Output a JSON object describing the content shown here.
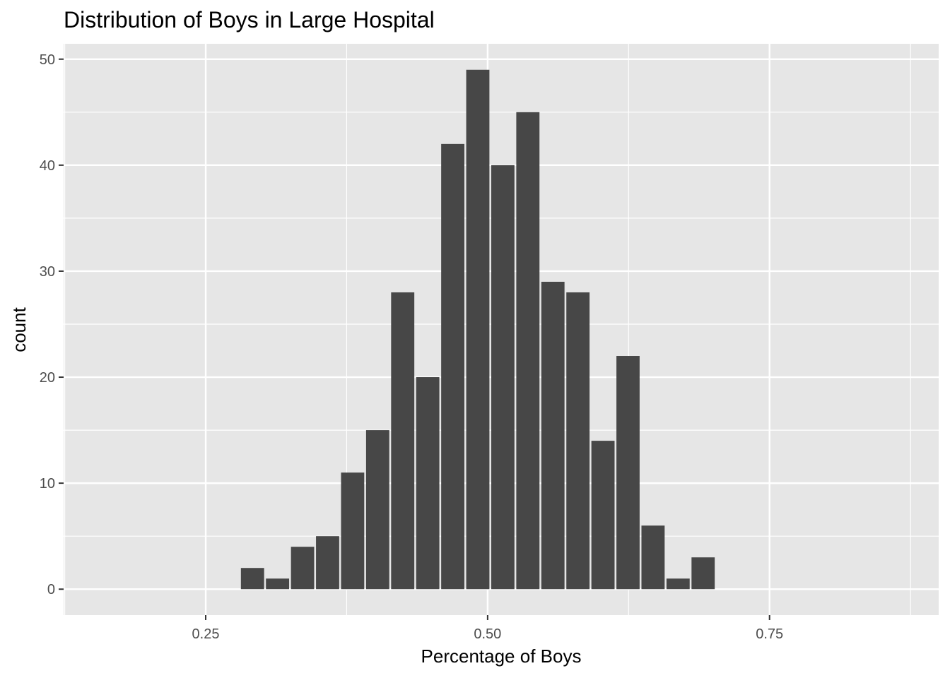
{
  "chart_data": {
    "type": "bar",
    "title": "Distribution of Boys in Large Hospital",
    "xlabel": "Percentage of Boys",
    "ylabel": "count",
    "bin_width": 0.0222,
    "x": [
      0.2915,
      0.3137,
      0.3359,
      0.3581,
      0.3803,
      0.4025,
      0.4247,
      0.4469,
      0.4691,
      0.4913,
      0.5135,
      0.5357,
      0.5579,
      0.5801,
      0.6023,
      0.6245,
      0.6467,
      0.6689,
      0.6911
    ],
    "values": [
      2,
      1,
      4,
      5,
      11,
      15,
      28,
      20,
      42,
      49,
      40,
      45,
      29,
      28,
      14,
      22,
      6,
      1,
      3
    ],
    "xlim": [
      0.124,
      0.9
    ],
    "ylim": [
      -2.45,
      51.45
    ],
    "x_ticks": [
      0.25,
      0.5,
      0.75
    ],
    "x_tick_labels": [
      "0.25",
      "0.50",
      "0.75"
    ],
    "y_ticks": [
      0,
      10,
      20,
      30,
      40,
      50
    ],
    "y_tick_labels": [
      "0",
      "10",
      "20",
      "30",
      "40",
      "50"
    ],
    "grid": true,
    "colors": {
      "bar": "#474747",
      "panel": "#e6e6e6",
      "grid": "#ffffff",
      "tick": "#4d4d4d"
    }
  }
}
